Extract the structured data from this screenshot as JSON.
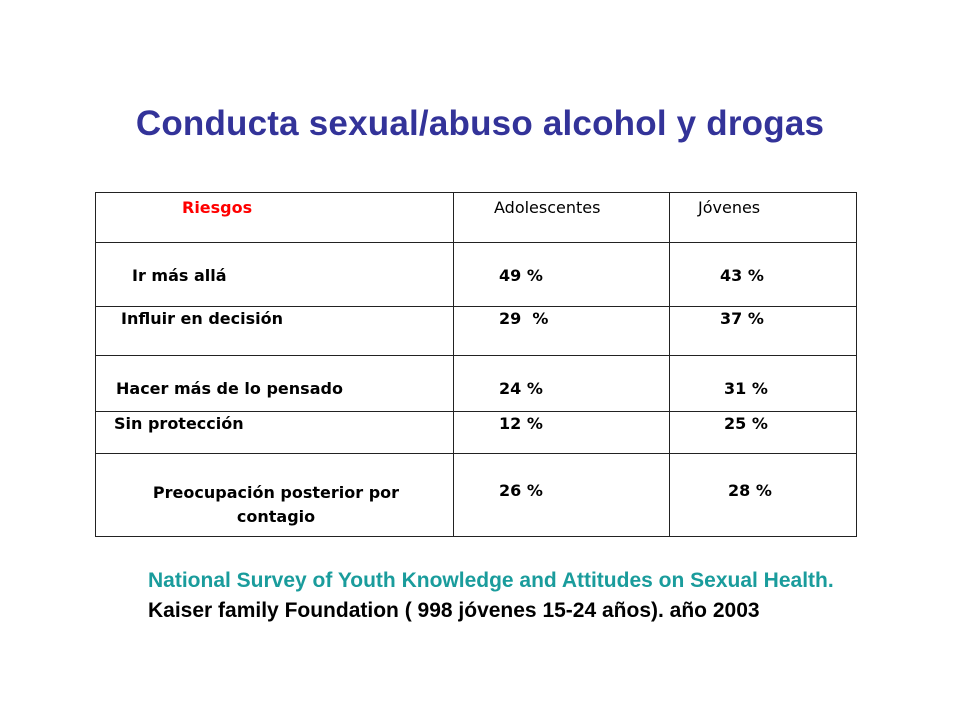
{
  "slide": {
    "title": "Conducta sexual/abuso alcohol y drogas"
  },
  "table": {
    "headers": {
      "risk": "Riesgos",
      "adolescents": "Adolescentes",
      "young": "Jóvenes"
    },
    "rows": [
      {
        "risk": "Ir más allá",
        "adolescents": "49 %",
        "young": "43 %"
      },
      {
        "risk": "Influir en decisión",
        "adolescents": "29  %",
        "young": "37 %"
      },
      {
        "risk": "Hacer más de lo pensado",
        "adolescents": "24 %",
        "young": "31 %"
      },
      {
        "risk": "Sin protección",
        "adolescents": "12 %",
        "young": "25 %"
      },
      {
        "risk": "Preocupación posterior por contagio",
        "adolescents": "26 %",
        "young": "28 %"
      }
    ]
  },
  "citation": {
    "highlight": "National Survey of Youth Knowledge and Attitudes on Sexual Health.",
    "rest": " Kaiser family Foundation ( 998 jóvenes 15-24 años). año 2003"
  },
  "colors": {
    "title": "#333399",
    "header_risk": "#ff0000",
    "citation_highlight": "#1a9c9c",
    "text": "#000000"
  }
}
